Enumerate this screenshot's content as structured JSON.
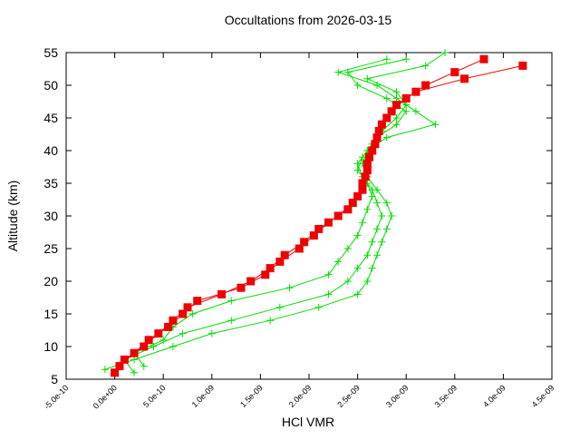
{
  "chart_data": {
    "type": "line",
    "title": "Occultations from 2026-03-15",
    "x_label": "HCl VMR",
    "y_label": "Altitude (km)",
    "xlim": [
      -5e-10,
      4.5e-09
    ],
    "ylim": [
      5,
      55
    ],
    "xticks": [
      {
        "value": -5e-10,
        "label": "-5.0e-10"
      },
      {
        "value": 0,
        "label": "0.0e+00"
      },
      {
        "value": 5e-10,
        "label": "5.0e-10"
      },
      {
        "value": 1e-09,
        "label": "1.0e-09"
      },
      {
        "value": 1.5e-09,
        "label": "1.5e-09"
      },
      {
        "value": 2e-09,
        "label": "2.0e-09"
      },
      {
        "value": 2.5e-09,
        "label": "2.5e-09"
      },
      {
        "value": 3e-09,
        "label": "3.0e-09"
      },
      {
        "value": 3.5e-09,
        "label": "3.5e-09"
      },
      {
        "value": 4e-09,
        "label": "4.0e-09"
      },
      {
        "value": 4.5e-09,
        "label": "4.5e-09"
      }
    ],
    "yticks": [
      5,
      10,
      15,
      20,
      25,
      30,
      35,
      40,
      45,
      50,
      55
    ],
    "grid": false,
    "series": [
      {
        "color": "#00dd00",
        "marker": "plus",
        "x": [
          -1e-10,
          2e-10,
          6e-10,
          1e-09,
          1.6e-09,
          2.1e-09,
          2.5e-09,
          2.6e-09,
          2.65e-09,
          2.7e-09,
          2.75e-09,
          2.8e-09,
          2.85e-09,
          2.8e-09,
          2.7e-09,
          2.6e-09,
          2.55e-09,
          2.6e-09,
          2.8e-09,
          3.3e-09,
          3.1e-09,
          2.9e-09,
          2.7e-09,
          2.3e-09,
          2.8e-09
        ],
        "values": [
          6.5,
          8,
          10,
          12,
          14,
          16,
          18,
          20,
          22,
          24,
          26,
          28,
          30,
          32,
          34,
          36,
          38,
          40,
          42,
          44,
          46,
          48,
          50,
          52,
          54
        ]
      },
      {
        "color": "#00dd00",
        "marker": "plus",
        "x": [
          2e-10,
          1e-10,
          4e-10,
          7e-10,
          1.2e-09,
          1.7e-09,
          2.2e-09,
          2.4e-09,
          2.5e-09,
          2.6e-09,
          2.65e-09,
          2.7e-09,
          2.75e-09,
          2.7e-09,
          2.65e-09,
          2.55e-09,
          2.5e-09,
          2.6e-09,
          2.7e-09,
          2.9e-09,
          3e-09,
          2.8e-09,
          2.5e-09,
          2.4e-09,
          3e-09
        ],
        "values": [
          6,
          8,
          10,
          12,
          14,
          16,
          18,
          20,
          22,
          24,
          26,
          28,
          30,
          32,
          34,
          36,
          38,
          40,
          42,
          44,
          46,
          48,
          50,
          52,
          54
        ]
      },
      {
        "color": "#00dd00",
        "marker": "plus",
        "x": [
          3e-10,
          2e-10,
          5e-10,
          6e-10,
          8e-10,
          1.2e-09,
          1.8e-09,
          2.2e-09,
          2.3e-09,
          2.4e-09,
          2.5e-09,
          2.55e-09,
          2.6e-09,
          2.65e-09,
          2.6e-09,
          2.5e-09,
          2.55e-09,
          2.65e-09,
          2.75e-09,
          2.9e-09,
          3e-09,
          2.9e-09,
          2.6e-09,
          3.2e-09,
          3.4e-09
        ],
        "values": [
          7,
          9,
          11,
          13,
          15,
          17,
          19,
          21,
          23,
          25,
          27,
          29,
          31,
          33,
          35,
          37,
          39,
          41,
          43,
          45,
          47,
          49,
          51,
          53,
          55
        ]
      },
      {
        "color": "#ee0000",
        "marker": "square",
        "x": [
          0,
          1e-10,
          3e-10,
          4.5e-10,
          6e-10,
          7.5e-10,
          1.1e-09,
          1.4e-09,
          1.6e-09,
          1.75e-09,
          1.95e-09,
          2.1e-09,
          2.3e-09,
          2.45e-09,
          2.55e-09,
          2.58e-09,
          2.6e-09,
          2.65e-09,
          2.7e-09,
          2.75e-09,
          2.85e-09,
          3e-09,
          3.2e-09,
          3.5e-09,
          3.8e-09
        ],
        "values": [
          6,
          8,
          10,
          12,
          14,
          16,
          18,
          20,
          22,
          24,
          26,
          28,
          30,
          32,
          34,
          36,
          38,
          40,
          42,
          44,
          46,
          48,
          50,
          52,
          54
        ]
      },
      {
        "color": "#ee0000",
        "marker": "square",
        "x": [
          5e-11,
          2e-10,
          3.5e-10,
          5.5e-10,
          7e-10,
          8.5e-10,
          1.3e-09,
          1.55e-09,
          1.7e-09,
          1.9e-09,
          2.05e-09,
          2.2e-09,
          2.4e-09,
          2.5e-09,
          2.55e-09,
          2.6e-09,
          2.62e-09,
          2.68e-09,
          2.72e-09,
          2.8e-09,
          2.9e-09,
          3.1e-09,
          3.6e-09,
          4.2e-09
        ],
        "values": [
          7,
          9,
          11,
          13,
          15,
          17,
          19,
          21,
          23,
          25,
          27,
          29,
          31,
          33,
          35,
          37,
          39,
          41,
          43,
          45,
          47,
          49,
          51,
          53
        ]
      }
    ]
  }
}
